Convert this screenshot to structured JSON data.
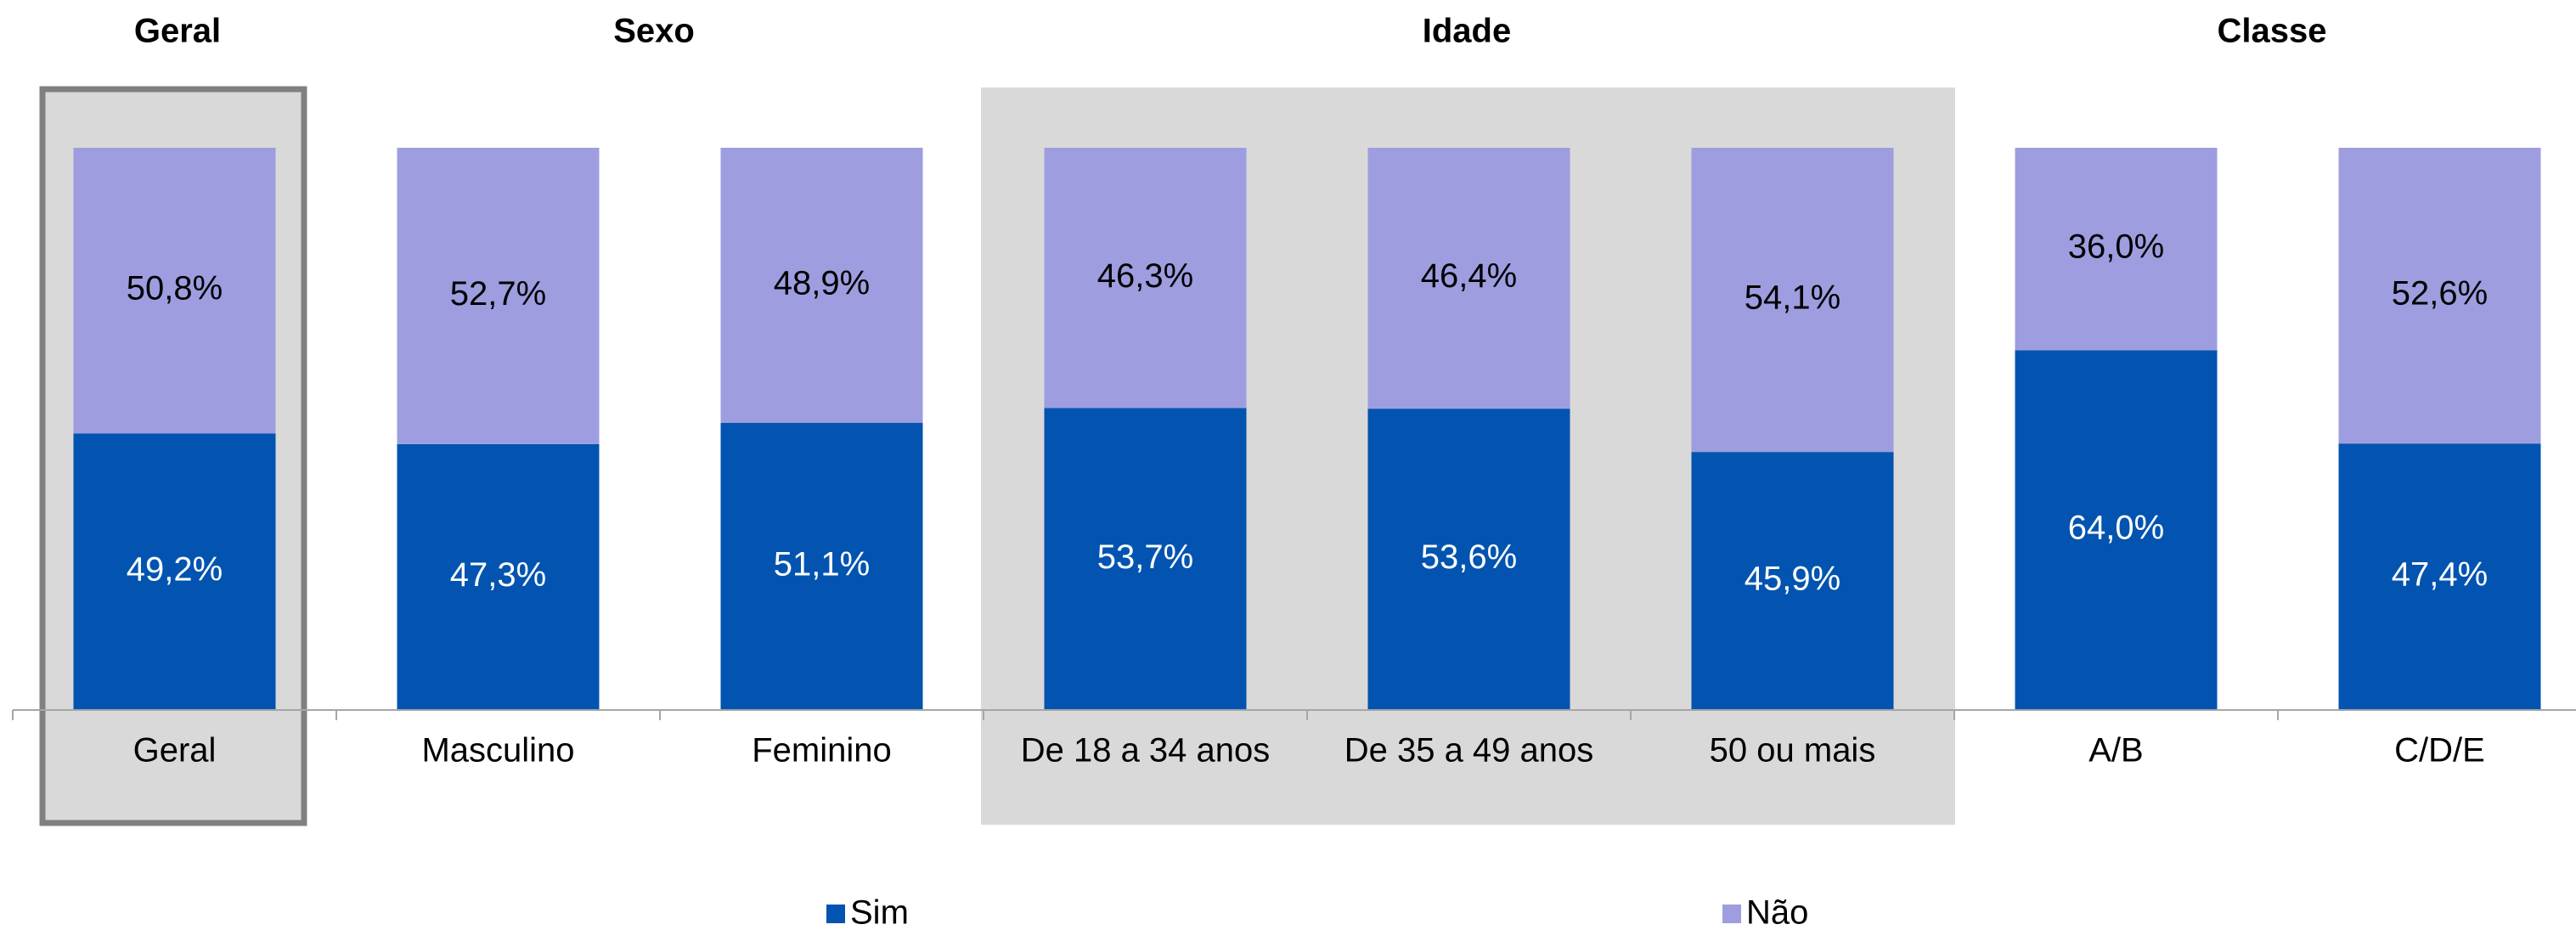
{
  "chart_data": {
    "type": "stacked_bar",
    "group_labels": [
      "Geral",
      "Sexo",
      "Idade",
      "Classe"
    ],
    "categories": [
      "Geral",
      "Masculino",
      "Feminino",
      "De 18 a 34 anos",
      "De 35 a 49 anos",
      "50 ou mais",
      "A/B",
      "C/D/E"
    ],
    "series": [
      {
        "name": "Sim",
        "color": "#0254b0",
        "values": [
          49.2,
          47.3,
          51.1,
          53.7,
          53.6,
          45.9,
          64.0,
          47.4
        ],
        "value_labels": [
          "49,2%",
          "47,3%",
          "51,1%",
          "53,7%",
          "53,6%",
          "45,9%",
          "64,0%",
          "47,4%"
        ]
      },
      {
        "name": "Não",
        "color": "#9e9de0",
        "values": [
          50.8,
          52.7,
          48.9,
          46.3,
          46.4,
          54.1,
          36.0,
          52.6
        ],
        "value_labels": [
          "50,8%",
          "52,7%",
          "48,9%",
          "46,3%",
          "46,4%",
          "54,1%",
          "36,0%",
          "52,6%"
        ]
      }
    ],
    "ylim": [
      0,
      100
    ],
    "legend": "bottom"
  }
}
